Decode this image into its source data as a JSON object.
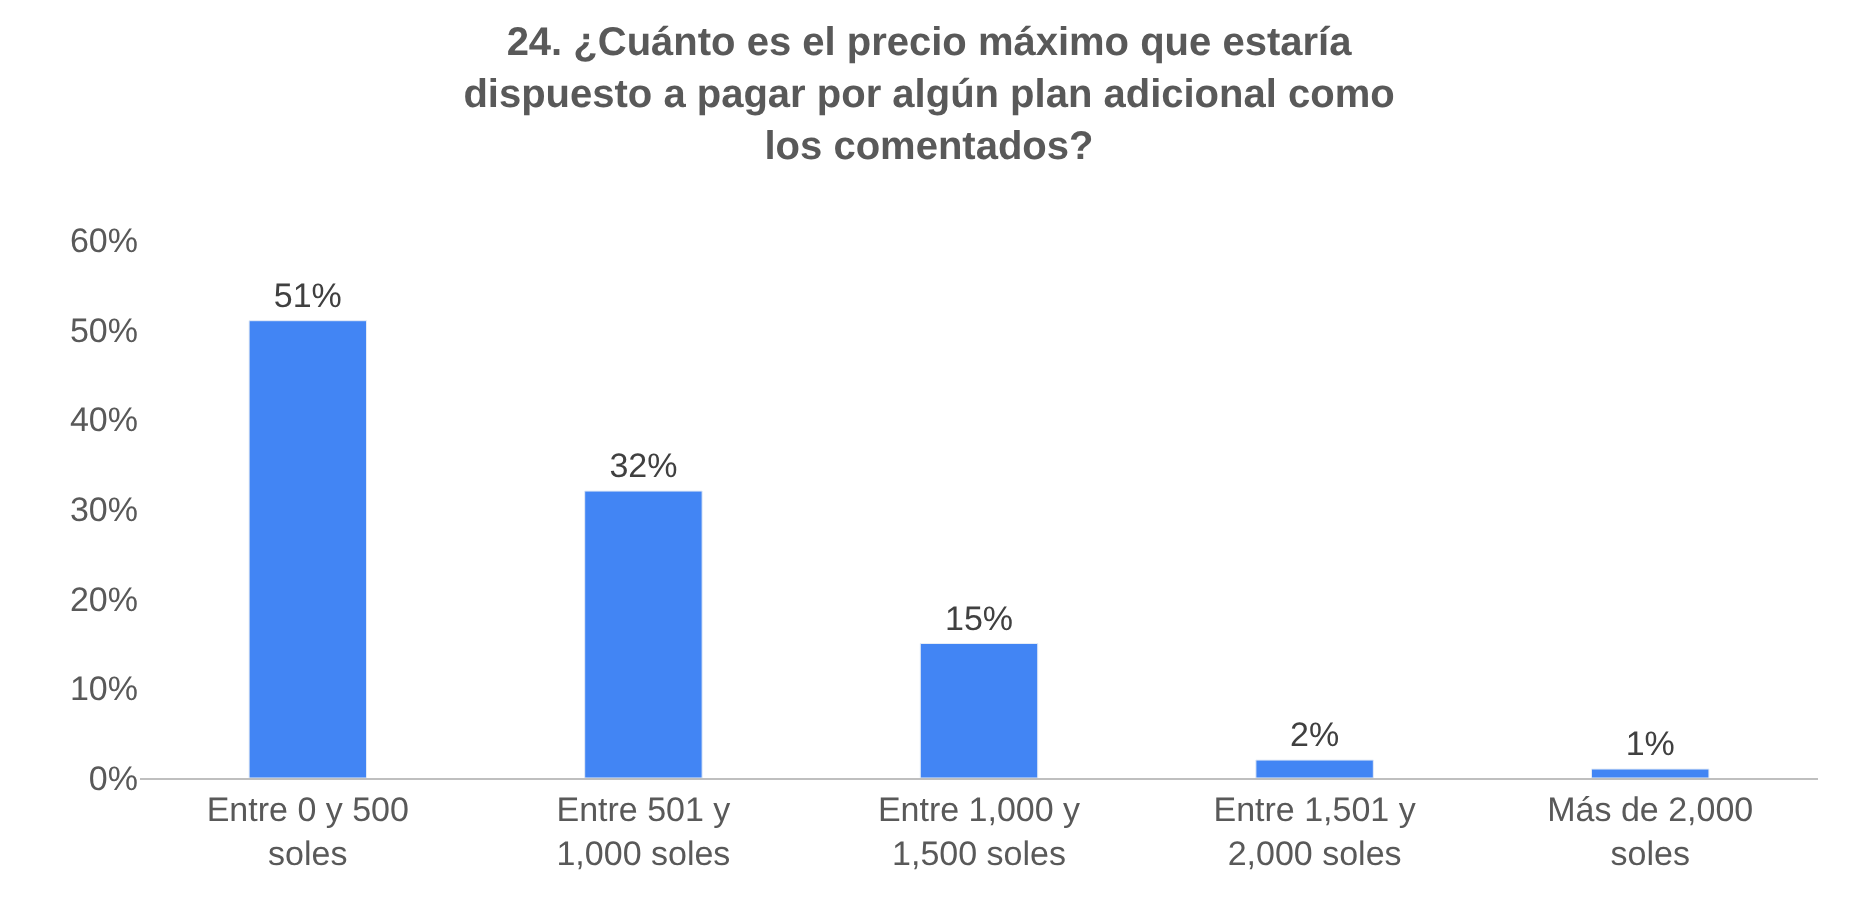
{
  "chart_data": {
    "type": "bar",
    "title": "24. ¿Cuánto es el precio máximo que estaría dispuesto a pagar por algún plan adicional como los comentados?",
    "categories": [
      "Entre 0 y 500 soles",
      "Entre 501 y 1,000 soles",
      "Entre 1,000 y 1,500 soles",
      "Entre 1,501 y 2,000 soles",
      "Más de 2,000 soles"
    ],
    "values": [
      51,
      32,
      15,
      2,
      1
    ],
    "value_labels": [
      "51%",
      "32%",
      "15%",
      "2%",
      "1%"
    ],
    "color": "#4285f4",
    "ylim": [
      0,
      60
    ],
    "yticks": [
      {
        "value": 0,
        "label": "0%"
      },
      {
        "value": 10,
        "label": "10%"
      },
      {
        "value": 20,
        "label": "20%"
      },
      {
        "value": 30,
        "label": "30%"
      },
      {
        "value": 40,
        "label": "40%"
      },
      {
        "value": 50,
        "label": "50%"
      },
      {
        "value": 60,
        "label": "60%"
      }
    ],
    "legend": false
  }
}
